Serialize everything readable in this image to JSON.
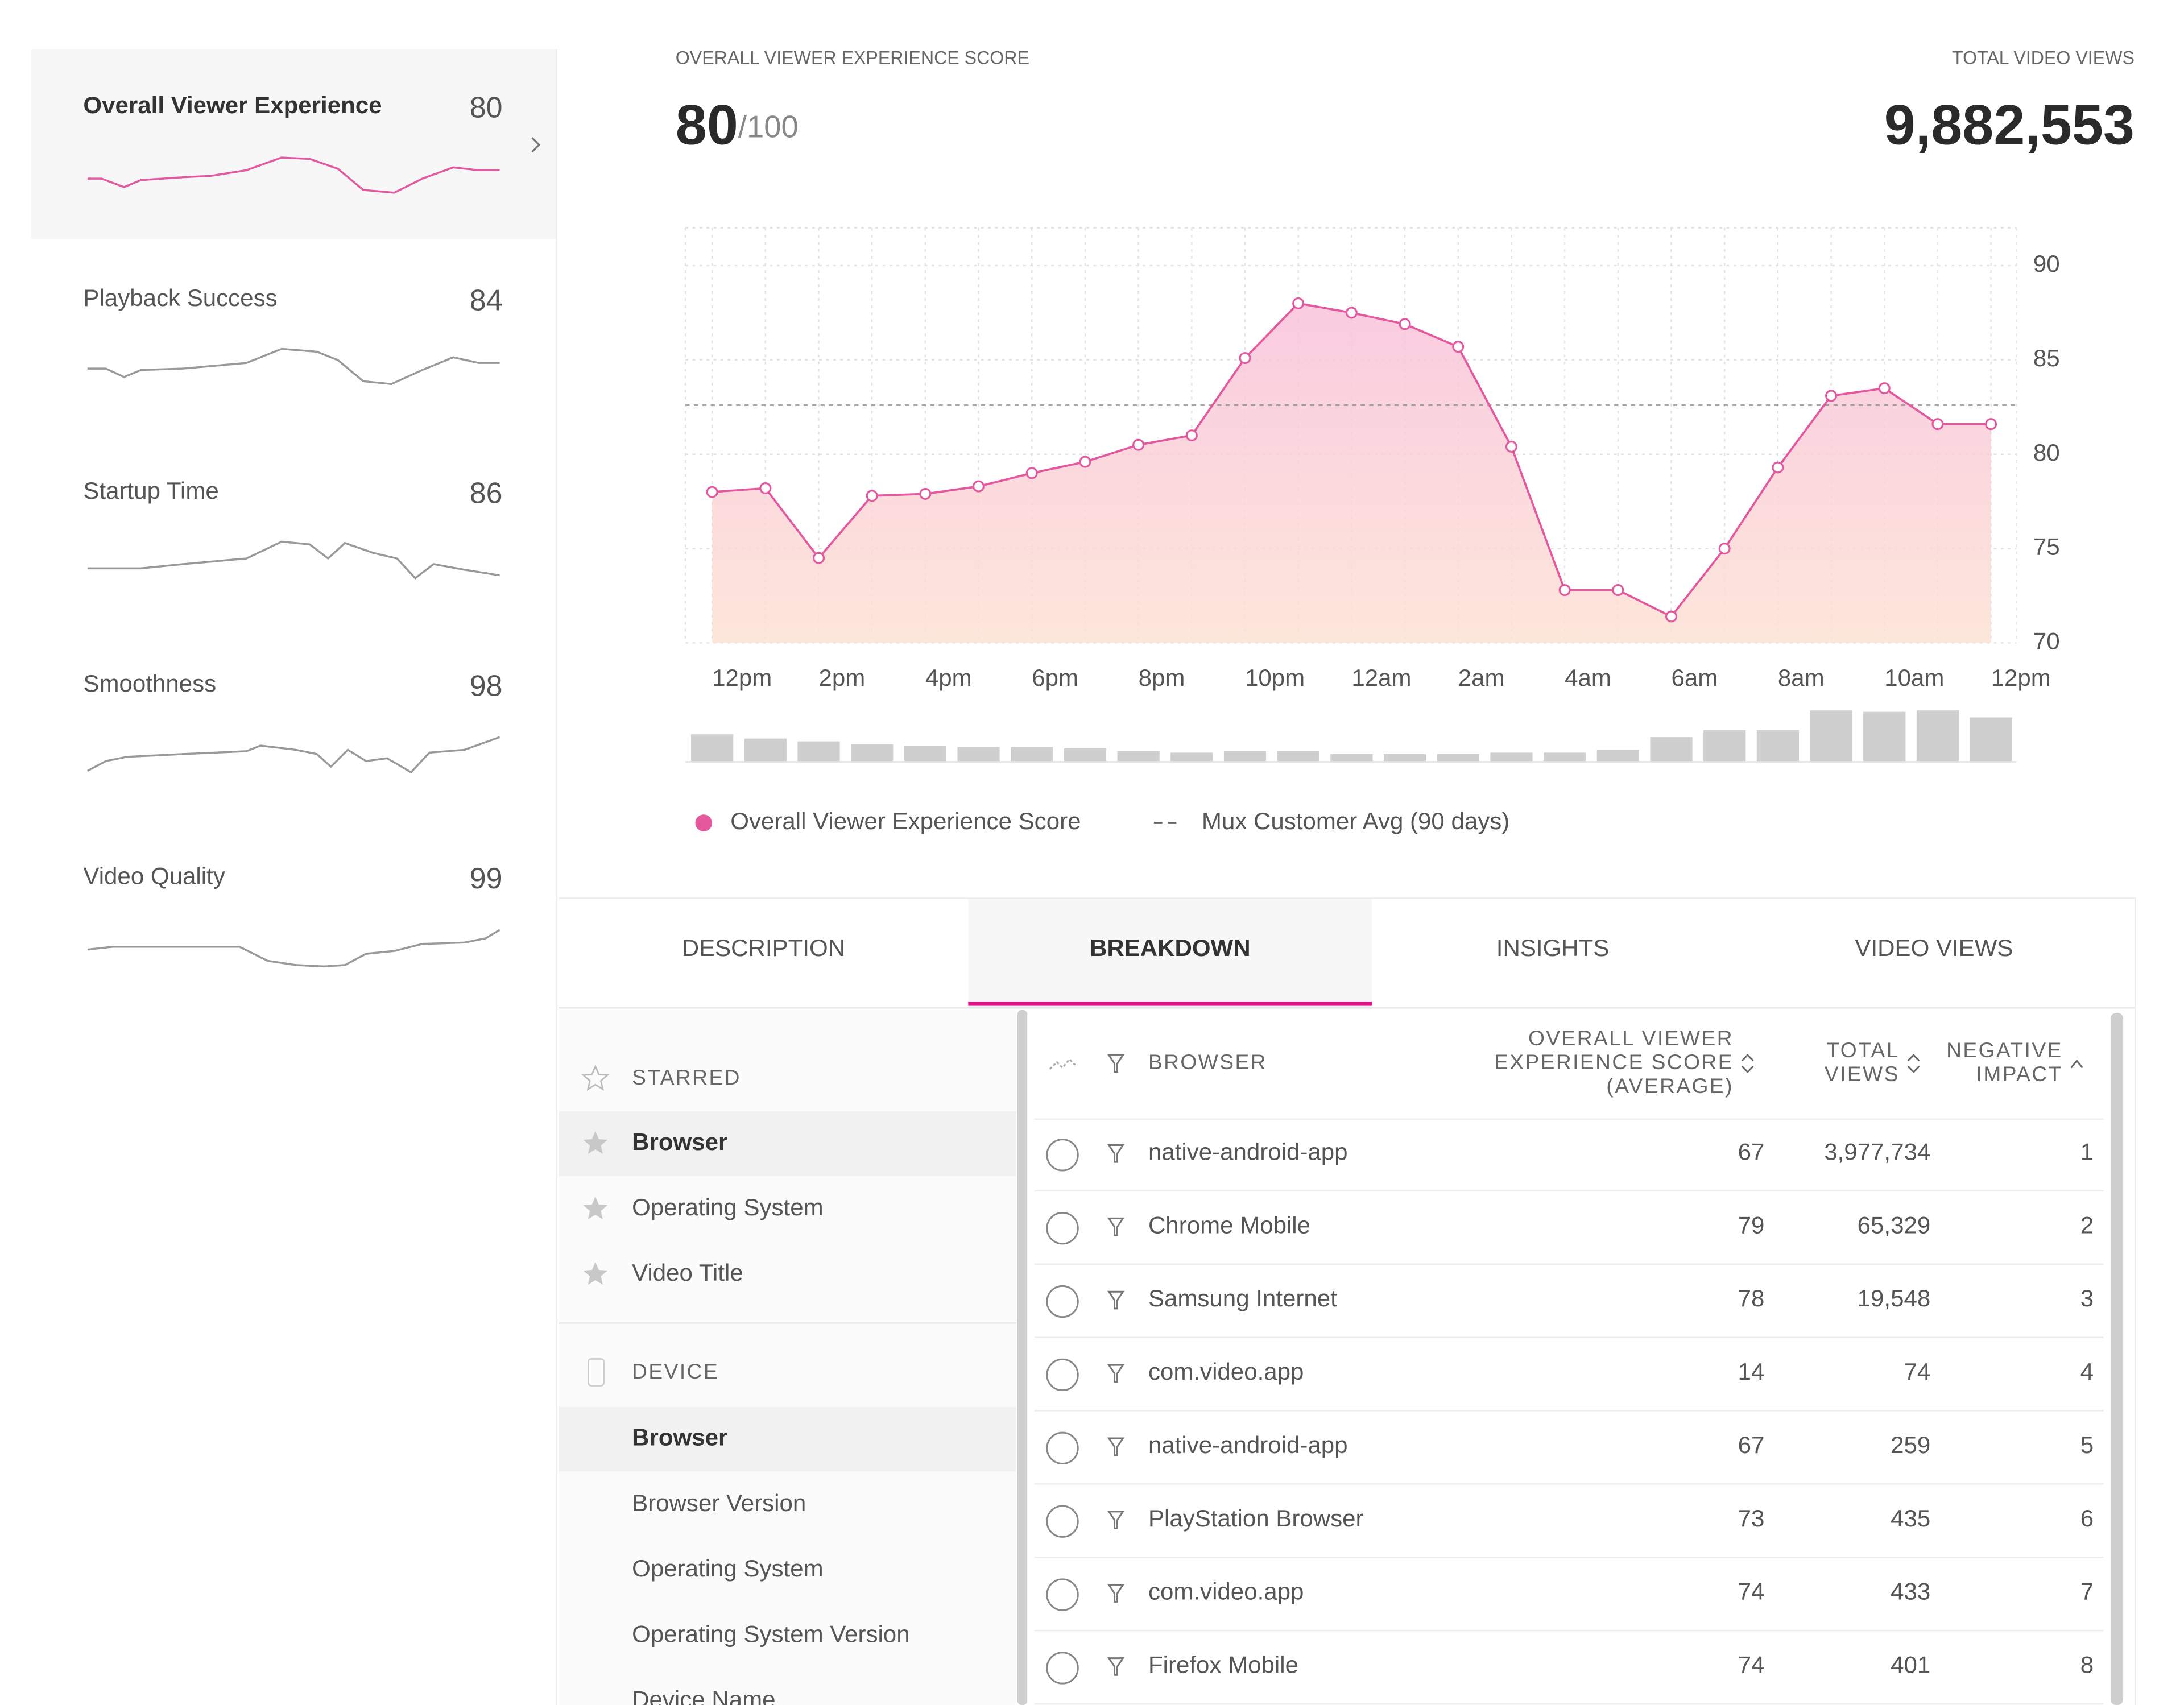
{
  "sidebar": {
    "items": [
      {
        "name": "Overall Viewer Experience",
        "score": 80
      },
      {
        "name": "Playback Success",
        "score": 84
      },
      {
        "name": "Startup Time",
        "score": 86
      },
      {
        "name": "Smoothness",
        "score": 98
      },
      {
        "name": "Video Quality",
        "score": 99
      }
    ]
  },
  "header": {
    "score_label": "OVERALL VIEWER EXPERIENCE SCORE",
    "score": 80,
    "score_max": "/100",
    "views_label": "TOTAL VIDEO VIEWS",
    "views": "9,882,553"
  },
  "chart_data": {
    "type": "line",
    "categories": [
      "12pm",
      null,
      "2pm",
      null,
      "4pm",
      null,
      "6pm",
      null,
      "8pm",
      null,
      "10pm",
      null,
      "12am",
      null,
      "2am",
      null,
      "4am",
      null,
      "6am",
      null,
      "8am",
      null,
      "10am",
      null,
      "12pm"
    ],
    "series": [
      {
        "name": "Overall Viewer Experience Score",
        "color": "#e4589e",
        "values": [
          78,
          78.2,
          74.5,
          77.8,
          77.9,
          78.3,
          79,
          79.6,
          80.5,
          81,
          85.1,
          88,
          87.5,
          86.9,
          85.7,
          80.4,
          72.8,
          72.8,
          71.4,
          75,
          79.3,
          83.1,
          83.5,
          81.6,
          81.6
        ]
      }
    ],
    "reference": {
      "name": "Mux Customer Avg (90 days)",
      "value": 82.6
    },
    "ylim": [
      70,
      92
    ],
    "yticks": [
      70,
      75,
      80,
      85,
      90
    ],
    "grid": true,
    "view_bars": [
      19,
      16,
      14,
      12,
      11,
      10,
      10,
      9,
      7,
      6,
      7,
      7,
      5,
      5,
      5,
      6,
      6,
      8,
      17,
      22,
      22,
      36,
      35,
      36,
      31
    ]
  },
  "tabs": {
    "items": [
      "DESCRIPTION",
      "BREAKDOWN",
      "INSIGHTS",
      "VIDEO VIEWS"
    ],
    "active": 1
  },
  "breakdown": {
    "groups": [
      {
        "title": "STARRED",
        "items": [
          {
            "label": "Browser",
            "selected": true
          },
          {
            "label": "Operating System",
            "selected": false
          },
          {
            "label": "Video Title",
            "selected": false
          }
        ]
      },
      {
        "title": "DEVICE",
        "items": [
          {
            "label": "Browser",
            "selected": true
          },
          {
            "label": "Browser Version",
            "selected": false
          },
          {
            "label": "Operating System",
            "selected": false
          },
          {
            "label": "Operating System Version",
            "selected": false
          },
          {
            "label": "Device Name",
            "selected": false
          }
        ]
      }
    ]
  },
  "table": {
    "columns": [
      [
        "BROWSER"
      ],
      [
        "OVERALL VIEWER",
        "EXPERIENCE SCORE",
        "(AVERAGE)"
      ],
      [
        "TOTAL",
        "VIEWS"
      ],
      [
        "NEGATIVE",
        "IMPACT"
      ]
    ],
    "rows": [
      [
        "native-android-app",
        67,
        "3,977,734",
        1
      ],
      [
        "Chrome Mobile",
        79,
        "65,329",
        2
      ],
      [
        "Samsung Internet",
        78,
        "19,548",
        3
      ],
      [
        "com.video.app",
        14,
        "74",
        4
      ],
      [
        "native-android-app",
        67,
        "259",
        5
      ],
      [
        "PlayStation Browser",
        73,
        "435",
        6
      ],
      [
        "com.video.app",
        74,
        "433",
        7
      ],
      [
        "Firefox Mobile",
        74,
        "401",
        8
      ]
    ]
  }
}
